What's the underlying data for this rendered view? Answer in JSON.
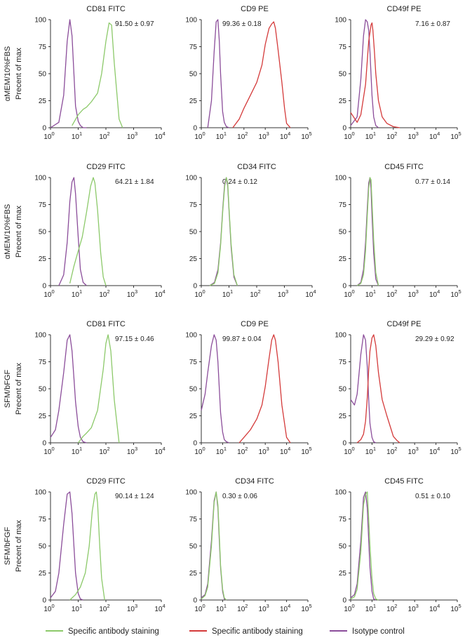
{
  "figure": {
    "row_condition_labels": [
      "αMEM/10%FBS",
      "αMEM/10%FBS",
      "SFM/bFGF",
      "SFM/bFGF"
    ],
    "y_axis_label": "Precent of max",
    "colors": {
      "specific_green": "#8cc96a",
      "specific_red": "#d43a3a",
      "isotype_purple": "#8b4d9a",
      "axis": "#333333"
    }
  },
  "legend": [
    {
      "label": "Specific antibody staining",
      "color": "#8cc96a"
    },
    {
      "label": "Specific antibody staining",
      "color": "#d43a3a"
    },
    {
      "label": "Isotype control",
      "color": "#8b4d9a"
    }
  ],
  "chart_data": [
    {
      "type": "line",
      "title": "CD81 FITC",
      "stat": "91.50 ± 0.97",
      "xscale": "log",
      "xlim_exp": [
        0,
        4
      ],
      "x_ticks": [
        "0",
        "1",
        "2",
        "3",
        "4"
      ],
      "ylim": [
        0,
        100
      ],
      "y_ticks": [
        "0",
        "25",
        "50",
        "75",
        "100"
      ],
      "series": [
        {
          "color": "#8b4d9a",
          "x": [
            1,
            2,
            3,
            4,
            5,
            6,
            7,
            8,
            10,
            12,
            15,
            20
          ],
          "y": [
            0,
            5,
            30,
            80,
            100,
            85,
            50,
            20,
            6,
            2,
            0,
            0
          ]
        },
        {
          "color": "#8cc96a",
          "x": [
            6,
            10,
            15,
            20,
            30,
            50,
            70,
            100,
            130,
            160,
            200,
            300,
            400
          ],
          "y": [
            2,
            12,
            17,
            19,
            24,
            32,
            50,
            80,
            97,
            95,
            60,
            8,
            0
          ]
        }
      ]
    },
    {
      "type": "line",
      "title": "CD9 PE",
      "stat": "99.36 ± 0.18",
      "xscale": "log",
      "xlim_exp": [
        0,
        5
      ],
      "x_ticks": [
        "0",
        "1",
        "2",
        "3",
        "4",
        "5"
      ],
      "ylim": [
        0,
        100
      ],
      "y_ticks": [
        "0",
        "25",
        "50",
        "75",
        "100"
      ],
      "series": [
        {
          "color": "#8b4d9a",
          "x": [
            2,
            3,
            4,
            5,
            6,
            7,
            8,
            10,
            12,
            15,
            20
          ],
          "y": [
            0,
            25,
            70,
            98,
            100,
            80,
            50,
            15,
            5,
            1,
            0
          ]
        },
        {
          "color": "#d43a3a",
          "x": [
            30,
            60,
            100,
            200,
            400,
            700,
            1000,
            1500,
            2000,
            2500,
            3000,
            4000,
            6000,
            8000,
            10000,
            15000
          ],
          "y": [
            0,
            8,
            18,
            30,
            42,
            58,
            77,
            92,
            96,
            98,
            92,
            72,
            42,
            18,
            4,
            0
          ]
        }
      ]
    },
    {
      "type": "line",
      "title": "CD49f PE",
      "stat": "7.16 ± 0.87",
      "xscale": "log",
      "xlim_exp": [
        0,
        5
      ],
      "x_ticks": [
        "0",
        "1",
        "2",
        "3",
        "4",
        "5"
      ],
      "ylim": [
        0,
        100
      ],
      "y_ticks": [
        "0",
        "25",
        "50",
        "75",
        "100"
      ],
      "series": [
        {
          "color": "#8b4d9a",
          "x": [
            1,
            2,
            3,
            4,
            5,
            6,
            7,
            8,
            10,
            12,
            15,
            20
          ],
          "y": [
            2,
            10,
            45,
            85,
            100,
            98,
            90,
            70,
            30,
            10,
            2,
            0
          ]
        },
        {
          "color": "#d43a3a",
          "x": [
            1,
            2,
            3,
            5,
            7,
            9,
            10,
            11,
            13,
            15,
            20,
            30,
            50,
            100,
            200
          ],
          "y": [
            14,
            5,
            12,
            40,
            80,
            95,
            97,
            90,
            70,
            50,
            25,
            10,
            4,
            1,
            0
          ]
        }
      ]
    },
    {
      "type": "line",
      "title": "CD29 FITC",
      "stat": "64.21 ± 1.84",
      "xscale": "log",
      "xlim_exp": [
        0,
        4
      ],
      "x_ticks": [
        "0",
        "1",
        "2",
        "3",
        "4"
      ],
      "ylim": [
        0,
        100
      ],
      "y_ticks": [
        "0",
        "25",
        "50",
        "75",
        "100"
      ],
      "series": [
        {
          "color": "#8b4d9a",
          "x": [
            2,
            3,
            4,
            5,
            6,
            7,
            8,
            10,
            12,
            15,
            20
          ],
          "y": [
            0,
            10,
            40,
            78,
            96,
            100,
            85,
            45,
            15,
            3,
            0
          ]
        },
        {
          "color": "#8cc96a",
          "x": [
            5,
            7,
            10,
            14,
            20,
            28,
            35,
            40,
            50,
            65,
            80,
            100
          ],
          "y": [
            2,
            18,
            32,
            45,
            68,
            92,
            100,
            95,
            70,
            30,
            8,
            0
          ]
        }
      ]
    },
    {
      "type": "line",
      "title": "CD34 FITC",
      "stat": "0.24 ± 0.12",
      "xscale": "log",
      "xlim_exp": [
        0,
        4
      ],
      "x_ticks": [
        "0",
        "1",
        "2",
        "3",
        "4"
      ],
      "ylim": [
        0,
        100
      ],
      "y_ticks": [
        "0",
        "25",
        "50",
        "75",
        "100"
      ],
      "series": [
        {
          "color": "#8b4d9a",
          "x": [
            2,
            3,
            4,
            5,
            6,
            7,
            8,
            9,
            10,
            12,
            15,
            20
          ],
          "y": [
            0,
            3,
            15,
            40,
            72,
            95,
            100,
            92,
            70,
            35,
            8,
            0
          ]
        },
        {
          "color": "#8cc96a",
          "x": [
            2,
            3,
            4,
            5,
            6,
            7,
            8,
            9,
            10,
            12,
            15,
            20
          ],
          "y": [
            0,
            2,
            12,
            38,
            70,
            92,
            100,
            95,
            72,
            38,
            10,
            0
          ]
        }
      ]
    },
    {
      "type": "line",
      "title": "CD45 FITC",
      "stat": "0.77 ± 0.14",
      "xscale": "log",
      "xlim_exp": [
        0,
        5
      ],
      "x_ticks": [
        "0",
        "1",
        "2",
        "3",
        "4",
        "5"
      ],
      "ylim": [
        0,
        100
      ],
      "y_ticks": [
        "0",
        "25",
        "50",
        "75",
        "100"
      ],
      "series": [
        {
          "color": "#8b4d9a",
          "x": [
            2,
            3,
            4,
            5,
            6,
            7,
            8,
            9,
            10,
            12,
            15,
            20
          ],
          "y": [
            0,
            3,
            15,
            40,
            72,
            95,
            100,
            90,
            65,
            30,
            6,
            0
          ]
        },
        {
          "color": "#8cc96a",
          "x": [
            2,
            3,
            4,
            5,
            6,
            7,
            8,
            9,
            10,
            12,
            15,
            20
          ],
          "y": [
            0,
            2,
            10,
            32,
            65,
            90,
            100,
            98,
            78,
            42,
            12,
            0
          ]
        }
      ]
    },
    {
      "type": "line",
      "title": "CD81 FITC",
      "stat": "97.15 ± 0.46",
      "xscale": "log",
      "xlim_exp": [
        0,
        4
      ],
      "x_ticks": [
        "0",
        "1",
        "2",
        "3",
        "4"
      ],
      "ylim": [
        0,
        100
      ],
      "y_ticks": [
        "0",
        "25",
        "50",
        "75",
        "100"
      ],
      "series": [
        {
          "color": "#8b4d9a",
          "x": [
            1,
            1.5,
            2,
            3,
            4,
            5,
            6,
            7,
            8,
            10,
            12,
            15,
            20
          ],
          "y": [
            5,
            12,
            30,
            65,
            95,
            100,
            85,
            60,
            38,
            15,
            5,
            1,
            0
          ]
        },
        {
          "color": "#8cc96a",
          "x": [
            10,
            15,
            20,
            30,
            50,
            80,
            100,
            120,
            150,
            200,
            300
          ],
          "y": [
            0,
            6,
            9,
            14,
            30,
            68,
            92,
            100,
            85,
            40,
            0
          ]
        }
      ]
    },
    {
      "type": "line",
      "title": "CD9 PE",
      "stat": "99.87 ± 0.04",
      "xscale": "log",
      "xlim_exp": [
        0,
        5
      ],
      "x_ticks": [
        "0",
        "1",
        "2",
        "3",
        "4",
        "5"
      ],
      "ylim": [
        0,
        100
      ],
      "y_ticks": [
        "0",
        "25",
        "50",
        "75",
        "100"
      ],
      "series": [
        {
          "color": "#8b4d9a",
          "x": [
            1,
            1.5,
            2,
            3,
            4,
            5,
            6,
            7,
            8,
            10,
            12,
            15,
            20
          ],
          "y": [
            30,
            45,
            65,
            90,
            100,
            95,
            75,
            50,
            28,
            10,
            3,
            1,
            0
          ]
        },
        {
          "color": "#d43a3a",
          "x": [
            60,
            100,
            200,
            400,
            700,
            1000,
            1500,
            2000,
            2500,
            3000,
            4000,
            6000,
            10000,
            15000
          ],
          "y": [
            0,
            5,
            12,
            22,
            35,
            52,
            78,
            95,
            100,
            95,
            75,
            35,
            5,
            0
          ]
        }
      ]
    },
    {
      "type": "line",
      "title": "CD49f PE",
      "stat": "29.29 ± 0.92",
      "xscale": "log",
      "xlim_exp": [
        0,
        5
      ],
      "x_ticks": [
        "0",
        "1",
        "2",
        "3",
        "4",
        "5"
      ],
      "ylim": [
        0,
        100
      ],
      "y_ticks": [
        "0",
        "25",
        "50",
        "75",
        "100"
      ],
      "series": [
        {
          "color": "#8b4d9a",
          "x": [
            1,
            1.5,
            2,
            3,
            4,
            5,
            6,
            7,
            8,
            10,
            12,
            15
          ],
          "y": [
            40,
            35,
            45,
            82,
            100,
            95,
            70,
            40,
            18,
            5,
            1,
            0
          ]
        },
        {
          "color": "#d43a3a",
          "x": [
            2,
            3,
            4,
            5,
            6,
            7,
            8,
            10,
            12,
            15,
            20,
            30,
            50,
            80,
            100,
            150,
            200
          ],
          "y": [
            0,
            3,
            8,
            20,
            42,
            68,
            85,
            97,
            100,
            90,
            65,
            40,
            25,
            12,
            6,
            2,
            0
          ]
        }
      ]
    },
    {
      "type": "line",
      "title": "CD29 FITC",
      "stat": "90.14 ± 1.24",
      "xscale": "log",
      "xlim_exp": [
        0,
        4
      ],
      "x_ticks": [
        "0",
        "1",
        "2",
        "3",
        "4"
      ],
      "ylim": [
        0,
        100
      ],
      "y_ticks": [
        "0",
        "25",
        "50",
        "75",
        "100"
      ],
      "series": [
        {
          "color": "#8b4d9a",
          "x": [
            1,
            1.5,
            2,
            3,
            4,
            5,
            6,
            7,
            8,
            10,
            12,
            15
          ],
          "y": [
            2,
            8,
            25,
            70,
            98,
            100,
            80,
            50,
            25,
            6,
            1,
            0
          ]
        },
        {
          "color": "#8cc96a",
          "x": [
            5,
            8,
            12,
            18,
            25,
            32,
            40,
            45,
            50,
            60,
            70,
            90
          ],
          "y": [
            0,
            5,
            12,
            25,
            50,
            82,
            98,
            100,
            90,
            50,
            20,
            0
          ]
        }
      ]
    },
    {
      "type": "line",
      "title": "CD34 FITC",
      "stat": "0.30 ± 0.06",
      "xscale": "log",
      "xlim_exp": [
        0,
        5
      ],
      "x_ticks": [
        "0",
        "1",
        "2",
        "3",
        "4",
        "5"
      ],
      "ylim": [
        0,
        100
      ],
      "y_ticks": [
        "0",
        "25",
        "50",
        "75",
        "100"
      ],
      "series": [
        {
          "color": "#8b4d9a",
          "x": [
            1,
            1.5,
            2,
            3,
            4,
            5,
            6,
            7,
            8,
            10,
            12,
            15
          ],
          "y": [
            2,
            5,
            15,
            55,
            92,
            100,
            85,
            55,
            30,
            8,
            1,
            0
          ]
        },
        {
          "color": "#8cc96a",
          "x": [
            1,
            1.5,
            2,
            3,
            4,
            5,
            6,
            7,
            8,
            10,
            12,
            15
          ],
          "y": [
            1,
            4,
            12,
            50,
            90,
            100,
            88,
            60,
            32,
            10,
            2,
            0
          ]
        }
      ]
    },
    {
      "type": "line",
      "title": "CD45 FITC",
      "stat": "0.51 ± 0.10",
      "xscale": "log",
      "xlim_exp": [
        0,
        5
      ],
      "x_ticks": [
        "0",
        "1",
        "2",
        "3",
        "4",
        "5"
      ],
      "ylim": [
        0,
        100
      ],
      "y_ticks": [
        "0",
        "25",
        "50",
        "75",
        "100"
      ],
      "series": [
        {
          "color": "#8b4d9a",
          "x": [
            1,
            1.5,
            2,
            3,
            4,
            5,
            6,
            7,
            8,
            10,
            12,
            15
          ],
          "y": [
            2,
            5,
            15,
            55,
            95,
            100,
            85,
            55,
            30,
            8,
            1,
            0
          ]
        },
        {
          "color": "#8cc96a",
          "x": [
            1,
            1.5,
            2,
            3,
            4,
            5,
            6,
            7,
            8,
            10,
            12,
            15,
            20
          ],
          "y": [
            1,
            3,
            10,
            45,
            88,
            98,
            100,
            75,
            50,
            20,
            6,
            1,
            0
          ]
        }
      ]
    }
  ]
}
